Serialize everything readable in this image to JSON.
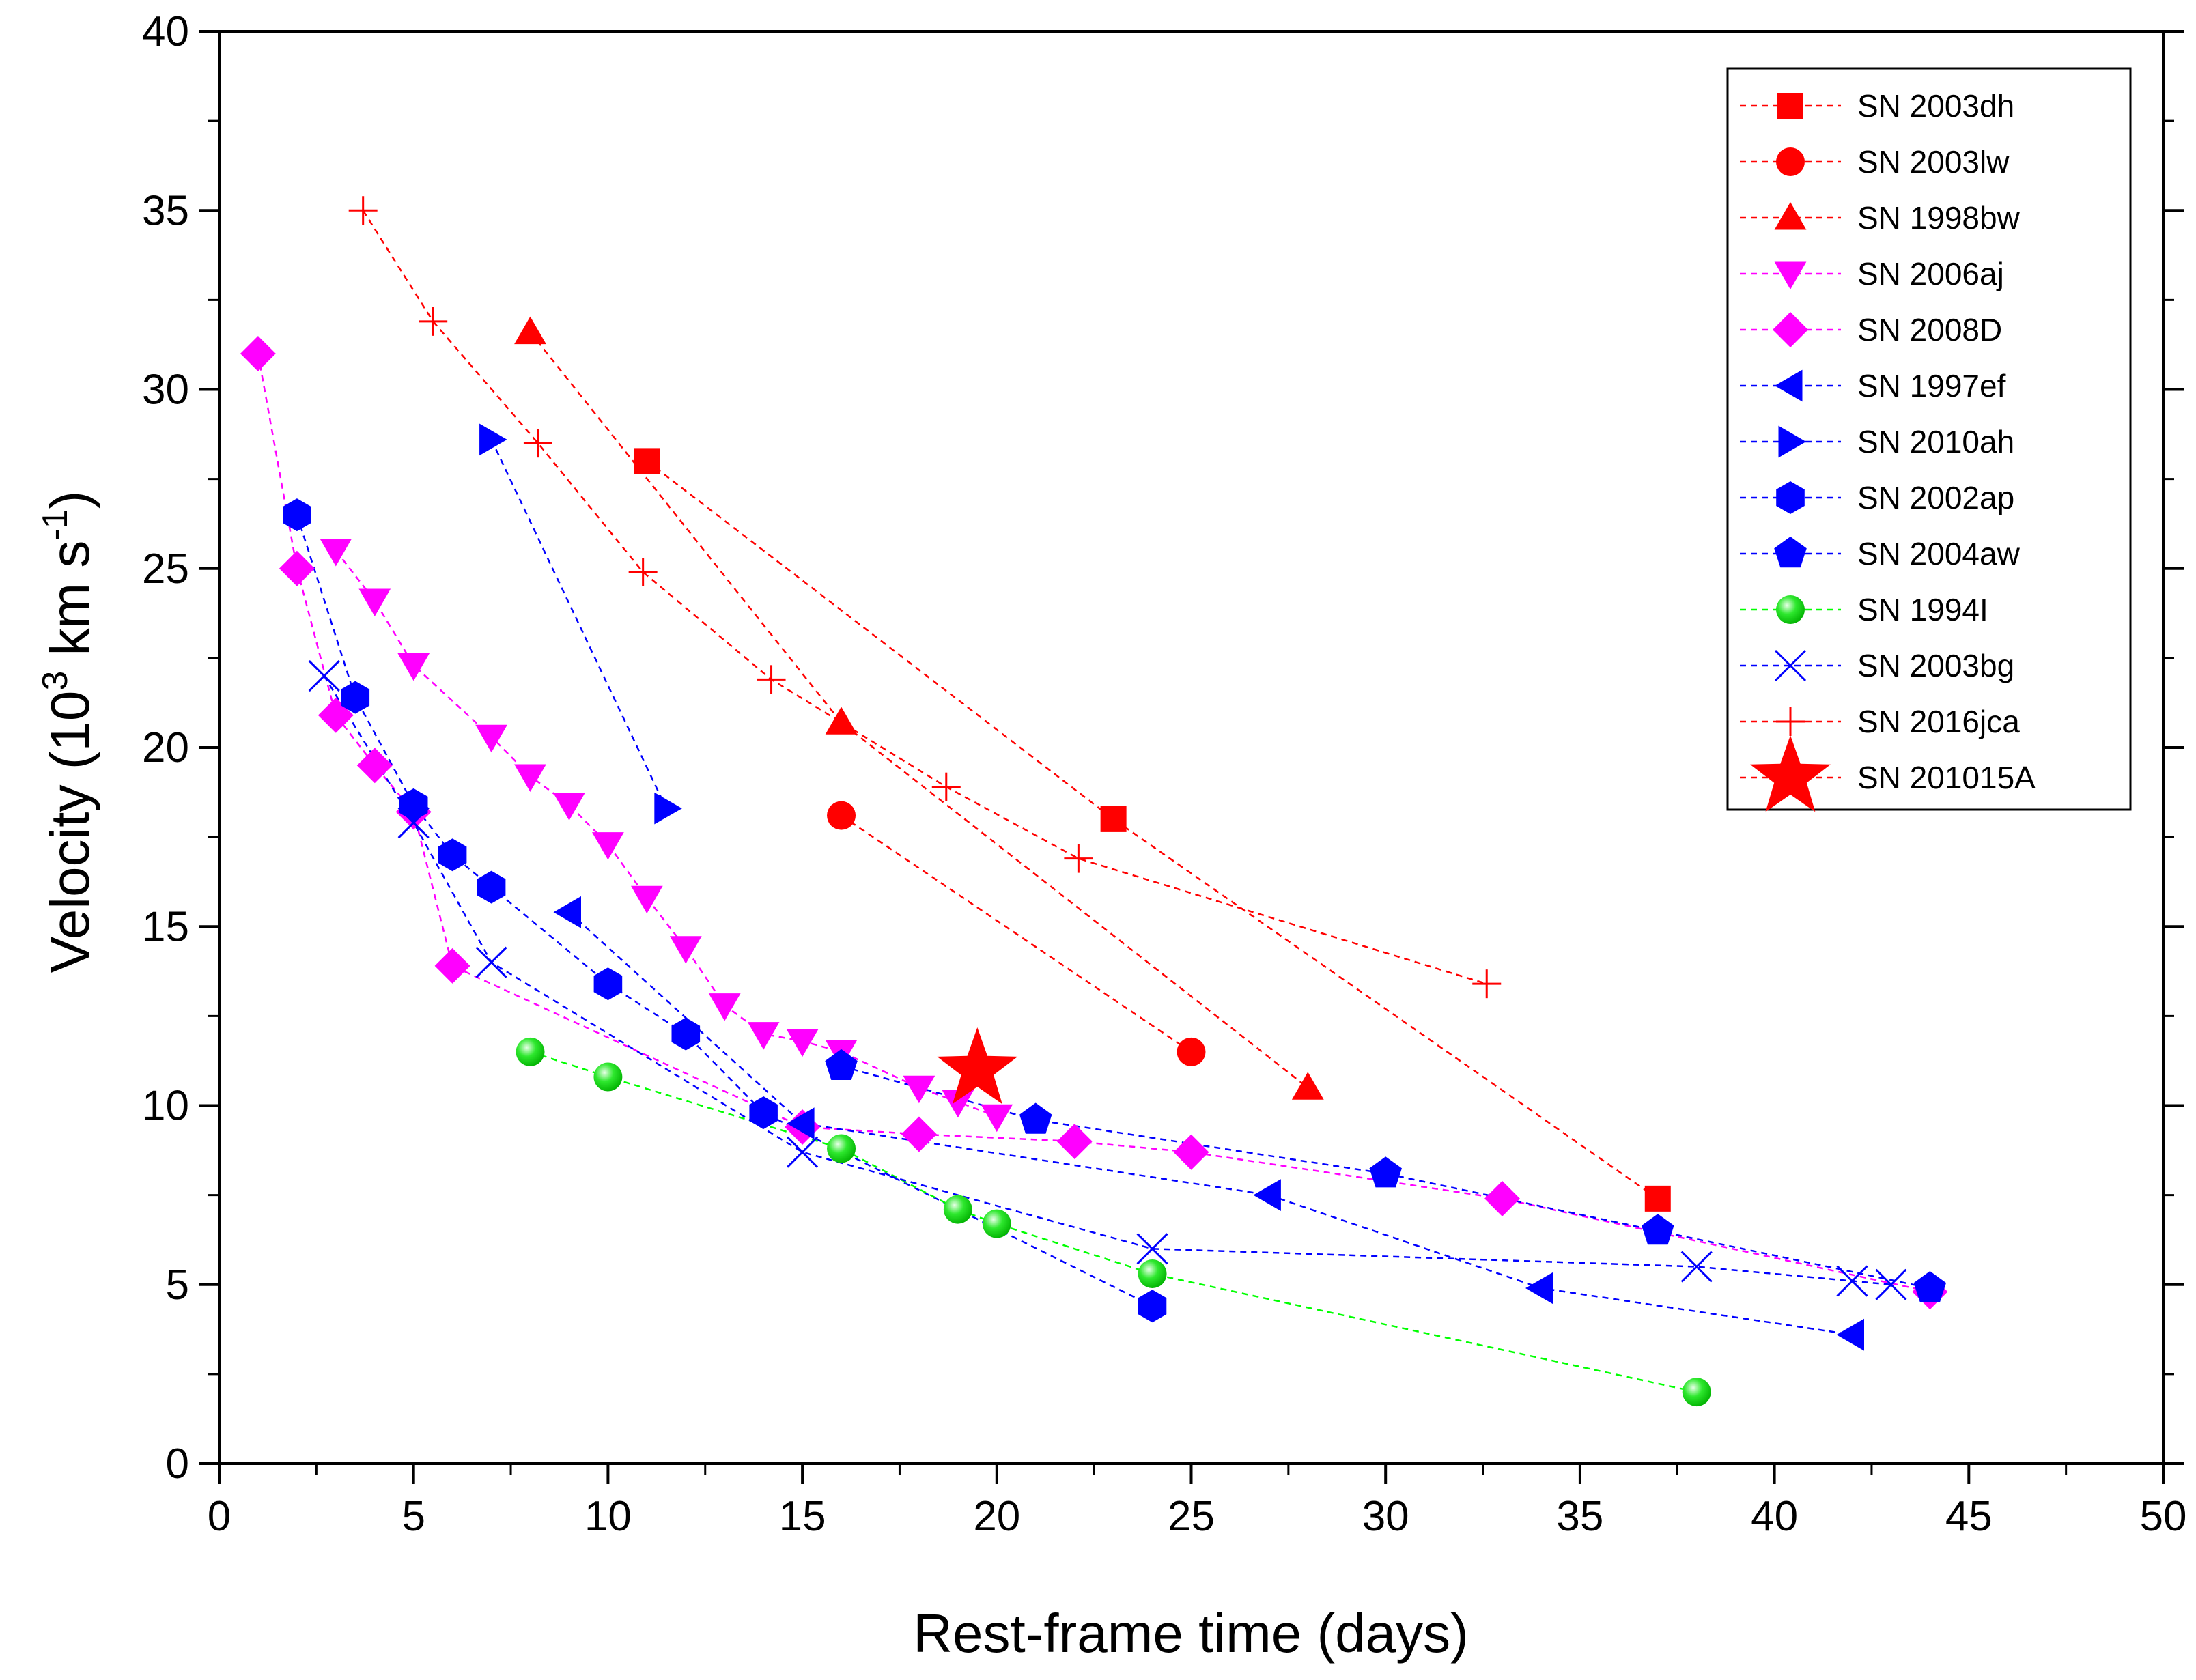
{
  "chart_data": {
    "type": "scatter",
    "title": "",
    "xlabel": "Rest-frame time (days)",
    "ylabel_main": "Velocity (10",
    "ylabel_sup": "3",
    "ylabel_mid": " km s",
    "ylabel_sup2": "-1",
    "ylabel_end": ")",
    "xlim": [
      0,
      50
    ],
    "ylim": [
      0,
      40
    ],
    "xticks": [
      0,
      5,
      10,
      15,
      20,
      25,
      30,
      35,
      40,
      45,
      50
    ],
    "yticks": [
      0,
      5,
      10,
      15,
      20,
      25,
      30,
      35,
      40
    ],
    "legend_position": "top-right",
    "series": [
      {
        "name": "SN 2003dh",
        "marker": "square",
        "color": "#ff0000",
        "x": [
          11,
          23,
          37
        ],
        "y": [
          28,
          18,
          7.4
        ]
      },
      {
        "name": "SN 2003lw",
        "marker": "circle",
        "color": "#ff0000",
        "x": [
          16,
          25
        ],
        "y": [
          18.1,
          11.5
        ]
      },
      {
        "name": "SN 1998bw",
        "marker": "triangle-up",
        "color": "#ff0000",
        "x": [
          8,
          16,
          28
        ],
        "y": [
          31.6,
          20.7,
          10.5
        ]
      },
      {
        "name": "SN 2006aj",
        "marker": "triangle-down",
        "color": "#ff00ff",
        "x": [
          3,
          4,
          5,
          7,
          8,
          9,
          10,
          11,
          12,
          13,
          14,
          15,
          16,
          18,
          19,
          20
        ],
        "y": [
          25.5,
          24.1,
          22.3,
          20.3,
          19.2,
          18.4,
          17.3,
          15.8,
          14.4,
          12.8,
          12.0,
          11.8,
          11.5,
          10.5,
          10.1,
          9.7
        ]
      },
      {
        "name": "SN 2008D",
        "marker": "diamond",
        "color": "#ff00ff",
        "x": [
          1,
          2,
          3,
          4,
          5,
          6,
          15,
          18,
          22,
          25,
          33,
          44
        ],
        "y": [
          31,
          25,
          20.9,
          19.5,
          18.2,
          13.9,
          9.4,
          9.2,
          9.0,
          8.7,
          7.4,
          4.8
        ]
      },
      {
        "name": "SN 1997ef",
        "marker": "triangle-left",
        "color": "#0000ff",
        "x": [
          9,
          15,
          27,
          34,
          42
        ],
        "y": [
          15.4,
          9.5,
          7.5,
          4.9,
          3.6
        ]
      },
      {
        "name": "SN 2010ah",
        "marker": "triangle-right",
        "color": "#0000ff",
        "x": [
          7,
          11.5
        ],
        "y": [
          28.6,
          18.3
        ]
      },
      {
        "name": "SN 2002ap",
        "marker": "hexagon",
        "color": "#0000ff",
        "x": [
          2,
          3.5,
          5,
          6,
          7,
          10,
          12,
          14,
          24
        ],
        "y": [
          26.5,
          21.4,
          18.4,
          17.0,
          16.1,
          13.4,
          12.0,
          9.8,
          4.4
        ]
      },
      {
        "name": "SN 2004aw",
        "marker": "pentagon",
        "color": "#0000ff",
        "x": [
          16,
          21,
          30,
          37,
          44
        ],
        "y": [
          11.1,
          9.6,
          8.1,
          6.5,
          4.9
        ]
      },
      {
        "name": "SN 1994I",
        "marker": "ball",
        "color": "#00ff00",
        "x": [
          8,
          10,
          16,
          19,
          20,
          24,
          38
        ],
        "y": [
          11.5,
          10.8,
          8.8,
          7.1,
          6.7,
          5.3,
          2.0
        ]
      },
      {
        "name": "SN 2003bg",
        "marker": "x",
        "color": "#0000ff",
        "x": [
          2.7,
          5,
          7,
          15,
          24,
          38,
          42,
          43
        ],
        "y": [
          22,
          17.9,
          14,
          8.7,
          6.0,
          5.5,
          5.1,
          5.0
        ]
      },
      {
        "name": "SN 2016jca",
        "marker": "plus",
        "color": "#ff0000",
        "x": [
          3.7,
          5.5,
          8.2,
          10.9,
          14.2,
          18.7,
          22.1,
          32.6
        ],
        "y": [
          35,
          31.9,
          28.5,
          24.9,
          21.9,
          18.9,
          16.9,
          13.4
        ]
      },
      {
        "name": "SN 201015A",
        "marker": "star",
        "color": "#ff0000",
        "x": [
          19.5
        ],
        "y": [
          11
        ],
        "no_line": true
      }
    ]
  }
}
